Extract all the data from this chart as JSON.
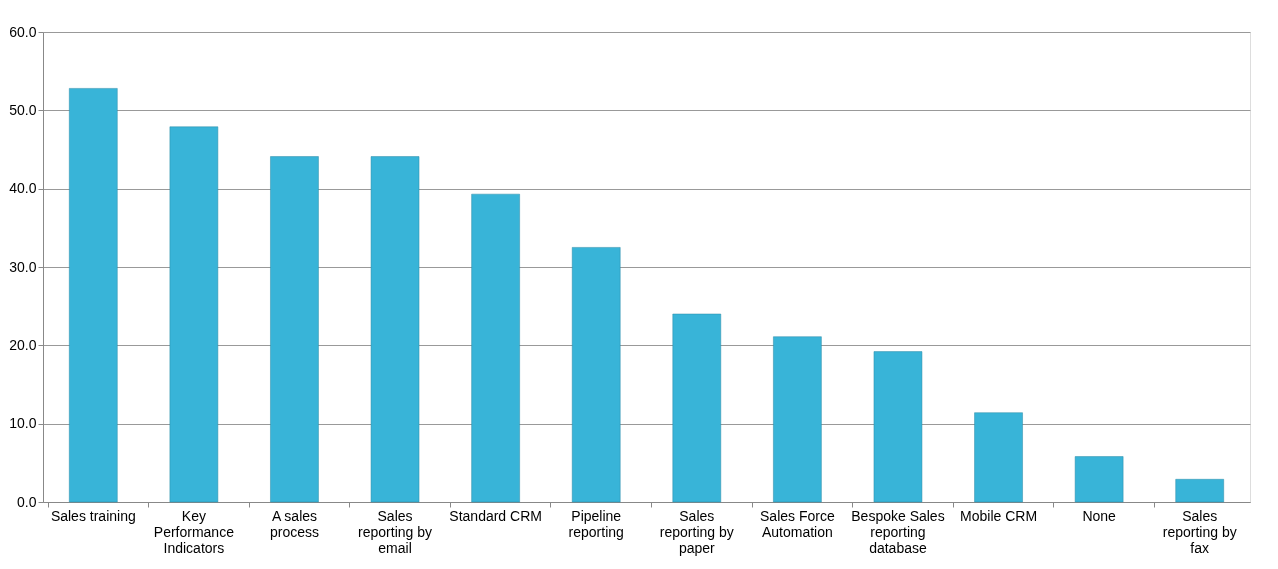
{
  "chart_data": {
    "type": "bar",
    "categories": [
      "Sales training",
      "Key Performance Indicators",
      "A sales process",
      "Sales reporting by email",
      "Standard CRM",
      "Pipeline reporting",
      "Sales reporting by paper",
      "Sales Force Automation",
      "Bespoke Sales reporting database",
      "Mobile CRM",
      "None",
      "Sales reporting by fax"
    ],
    "values": [
      52.8,
      47.9,
      44.1,
      44.1,
      39.3,
      32.5,
      24.0,
      21.1,
      19.2,
      11.4,
      5.8,
      2.9
    ],
    "color": "#38b4d8",
    "ylim": [
      0,
      60
    ],
    "yticks": [
      {
        "value": 0,
        "label": "0.0"
      },
      {
        "value": 10,
        "label": "10.0"
      },
      {
        "value": 20,
        "label": "20.0"
      },
      {
        "value": 30,
        "label": "30.0"
      },
      {
        "value": 40,
        "label": "40.0"
      },
      {
        "value": 50,
        "label": "50.0"
      },
      {
        "value": 60,
        "label": "60.0"
      }
    ],
    "grid": "y"
  }
}
